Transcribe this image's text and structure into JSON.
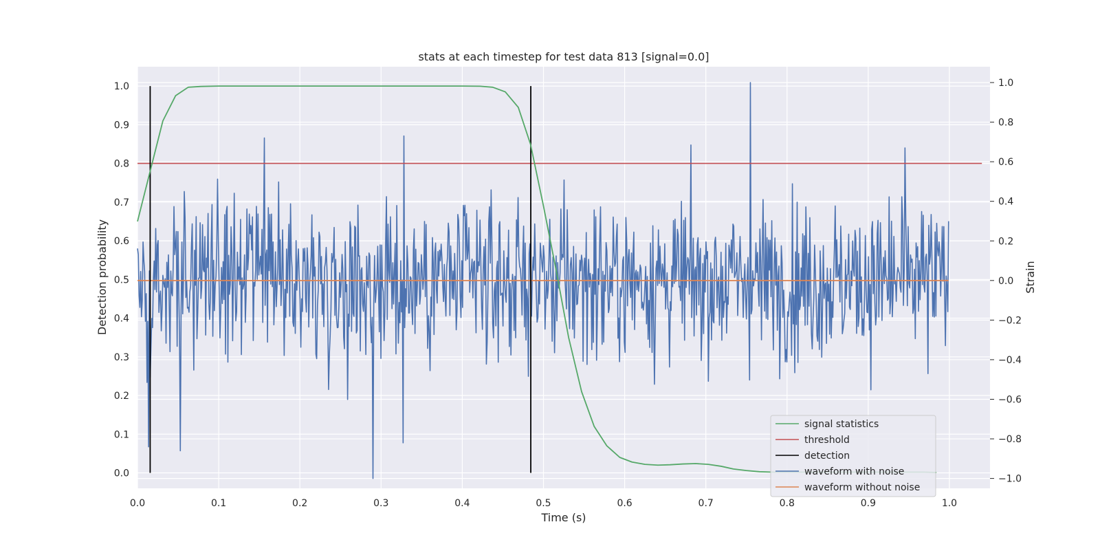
{
  "chart_data": {
    "type": "line",
    "title": "stats at each timestep for test data 813 [signal=0.0]",
    "xlabel": "Time (s)",
    "ylabel": "Detection probability",
    "y2label": "Strain",
    "xlim": [
      0.0,
      1.05
    ],
    "ylim": [
      -0.04,
      1.05
    ],
    "y2lim": [
      -1.05,
      1.08
    ],
    "x_ticks": [
      "0.0",
      "0.1",
      "0.2",
      "0.3",
      "0.4",
      "0.5",
      "0.6",
      "0.7",
      "0.8",
      "0.9",
      "1.0"
    ],
    "y_ticks": [
      "0.0",
      "0.1",
      "0.2",
      "0.3",
      "0.4",
      "0.5",
      "0.6",
      "0.7",
      "0.8",
      "0.9",
      "1.0"
    ],
    "y2_ticks": [
      "−1.0",
      "−0.8",
      "−0.6",
      "−0.4",
      "−0.2",
      "0.0",
      "0.2",
      "0.4",
      "0.6",
      "0.8",
      "1.0"
    ],
    "grid": true,
    "legend_position": "lower-right",
    "colors": {
      "signal": "#55a868",
      "threshold": "#c44e52",
      "detection": "#000000",
      "noise": "#4c72b0",
      "clean": "#dd8452",
      "plot_bg": "#eaeaf2",
      "grid": "#ffffff"
    },
    "series": [
      {
        "name": "signal statistics",
        "axis": "left",
        "x": [
          0.0,
          0.0156,
          0.03125,
          0.0469,
          0.0625,
          0.078,
          0.1,
          0.2,
          0.3,
          0.4,
          0.422,
          0.4375,
          0.453,
          0.469,
          0.484,
          0.5,
          0.516,
          0.531,
          0.547,
          0.5625,
          0.578,
          0.594,
          0.609,
          0.625,
          0.641,
          0.656,
          0.672,
          0.6875,
          0.703,
          0.719,
          0.734,
          0.75,
          0.766,
          0.781,
          0.797,
          0.8125,
          0.828,
          0.844,
          0.86,
          0.875,
          0.89,
          0.906,
          0.922,
          0.9375,
          0.953,
          0.969,
          0.984
        ],
        "y": [
          0.65,
          0.78,
          0.91,
          0.975,
          0.997,
          0.999,
          1.0,
          1.0,
          1.0,
          1.0,
          0.9995,
          0.997,
          0.985,
          0.945,
          0.85,
          0.69,
          0.52,
          0.35,
          0.21,
          0.12,
          0.07,
          0.04,
          0.028,
          0.022,
          0.02,
          0.021,
          0.023,
          0.024,
          0.022,
          0.017,
          0.01,
          0.006,
          0.003,
          0.002,
          0.002,
          0.002,
          0.002,
          0.002,
          0.002,
          0.002,
          0.002,
          0.002,
          0.002,
          0.002,
          0.002,
          0.002,
          0.001
        ]
      },
      {
        "name": "threshold",
        "axis": "left",
        "x": [
          0.0,
          1.04
        ],
        "y": [
          0.8,
          0.8
        ]
      },
      {
        "name": "detection",
        "axis": "left",
        "segments": [
          {
            "x": 0.0156,
            "y": [
              0.0,
              1.0
            ]
          },
          {
            "x": 0.4844,
            "y": [
              0.0,
              1.0
            ]
          }
        ]
      },
      {
        "name": "waveform with noise",
        "axis": "right",
        "x_range": [
          0.0,
          0.999
        ],
        "points": 1024,
        "approx_range": [
          -1.0,
          1.0
        ],
        "highlights": [
          {
            "x": 0.2905,
            "y": -1.0
          },
          {
            "x": 0.7545,
            "y": 1.0
          },
          {
            "x": 0.0135,
            "y": -0.84
          },
          {
            "x": 0.0525,
            "y": -0.86
          },
          {
            "x": 0.156,
            "y": 0.72
          },
          {
            "x": 0.3285,
            "y": 0.73
          },
          {
            "x": 0.3275,
            "y": -0.82
          },
          {
            "x": 0.945,
            "y": 0.67
          }
        ]
      },
      {
        "name": "waveform without noise",
        "axis": "right",
        "x": [
          0.0,
          0.999
        ],
        "y": [
          0.0,
          0.0
        ]
      }
    ]
  }
}
